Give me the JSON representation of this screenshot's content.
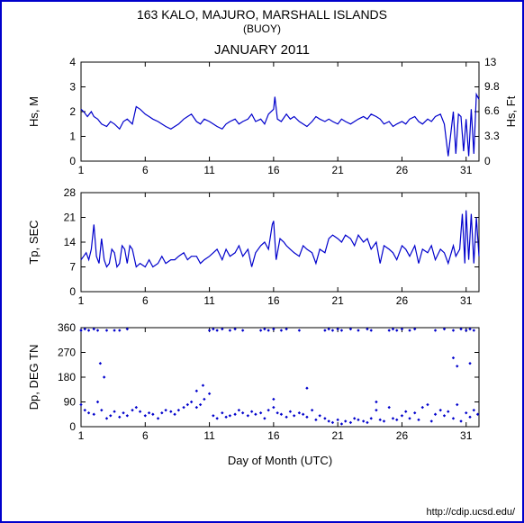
{
  "title": "163 KALO, MAJURO, MARSHALL ISLANDS",
  "subtitle": "(BUOY)",
  "month": "JANUARY 2011",
  "xaxis_label": "Day of Month (UTC)",
  "credit": "http://cdip.ucsd.edu/",
  "frame_border_color": "#0000cc",
  "line_color": "#0000cc",
  "marker_color": "#0000cc",
  "background_color": "#ffffff",
  "x": {
    "min": 1,
    "max": 32,
    "ticks": [
      1,
      6,
      11,
      16,
      21,
      26,
      31
    ]
  },
  "panels": [
    {
      "id": "hs",
      "ylabel_left": "Hs, M",
      "ylabel_right": "Hs, Ft",
      "ylim": [
        0,
        4
      ],
      "yticks_left": [
        0,
        1,
        2,
        3,
        4
      ],
      "yticks_right": [
        0,
        3.3,
        6.6,
        9.8,
        13
      ],
      "type": "line",
      "data": [
        [
          1,
          2.1
        ],
        [
          1.2,
          2.0
        ],
        [
          1.5,
          1.8
        ],
        [
          1.8,
          2.0
        ],
        [
          2,
          1.8
        ],
        [
          2.3,
          1.7
        ],
        [
          2.6,
          1.5
        ],
        [
          3,
          1.4
        ],
        [
          3.3,
          1.6
        ],
        [
          3.6,
          1.5
        ],
        [
          4,
          1.3
        ],
        [
          4.3,
          1.6
        ],
        [
          4.6,
          1.7
        ],
        [
          5,
          1.5
        ],
        [
          5.3,
          2.2
        ],
        [
          5.6,
          2.1
        ],
        [
          6,
          1.9
        ],
        [
          6.3,
          1.8
        ],
        [
          6.6,
          1.7
        ],
        [
          7,
          1.6
        ],
        [
          7.3,
          1.5
        ],
        [
          7.6,
          1.4
        ],
        [
          8,
          1.3
        ],
        [
          8.3,
          1.4
        ],
        [
          8.6,
          1.5
        ],
        [
          9,
          1.7
        ],
        [
          9.3,
          1.8
        ],
        [
          9.6,
          1.9
        ],
        [
          10,
          1.6
        ],
        [
          10.3,
          1.5
        ],
        [
          10.6,
          1.7
        ],
        [
          11,
          1.6
        ],
        [
          11.3,
          1.5
        ],
        [
          11.6,
          1.4
        ],
        [
          12,
          1.3
        ],
        [
          12.3,
          1.5
        ],
        [
          12.6,
          1.6
        ],
        [
          13,
          1.7
        ],
        [
          13.3,
          1.5
        ],
        [
          13.6,
          1.6
        ],
        [
          14,
          1.7
        ],
        [
          14.3,
          1.9
        ],
        [
          14.6,
          1.6
        ],
        [
          15,
          1.7
        ],
        [
          15.3,
          1.5
        ],
        [
          15.6,
          1.9
        ],
        [
          16,
          2.1
        ],
        [
          16.1,
          2.6
        ],
        [
          16.3,
          1.7
        ],
        [
          16.6,
          1.6
        ],
        [
          17,
          1.9
        ],
        [
          17.3,
          1.7
        ],
        [
          17.6,
          1.8
        ],
        [
          18,
          1.6
        ],
        [
          18.3,
          1.5
        ],
        [
          18.6,
          1.4
        ],
        [
          19,
          1.6
        ],
        [
          19.3,
          1.8
        ],
        [
          19.6,
          1.7
        ],
        [
          20,
          1.6
        ],
        [
          20.3,
          1.7
        ],
        [
          20.6,
          1.6
        ],
        [
          21,
          1.5
        ],
        [
          21.3,
          1.7
        ],
        [
          21.6,
          1.6
        ],
        [
          22,
          1.5
        ],
        [
          22.3,
          1.6
        ],
        [
          22.6,
          1.7
        ],
        [
          23,
          1.8
        ],
        [
          23.3,
          1.7
        ],
        [
          23.6,
          1.9
        ],
        [
          24,
          1.8
        ],
        [
          24.3,
          1.7
        ],
        [
          24.6,
          1.5
        ],
        [
          25,
          1.6
        ],
        [
          25.3,
          1.4
        ],
        [
          25.6,
          1.5
        ],
        [
          26,
          1.6
        ],
        [
          26.3,
          1.5
        ],
        [
          26.6,
          1.7
        ],
        [
          27,
          1.8
        ],
        [
          27.3,
          1.6
        ],
        [
          27.6,
          1.5
        ],
        [
          28,
          1.7
        ],
        [
          28.3,
          1.6
        ],
        [
          28.6,
          1.8
        ],
        [
          29,
          1.9
        ],
        [
          29.3,
          1.5
        ],
        [
          29.6,
          0.2
        ],
        [
          30,
          2.0
        ],
        [
          30.2,
          0.3
        ],
        [
          30.4,
          1.9
        ],
        [
          30.6,
          1.8
        ],
        [
          30.8,
          0.4
        ],
        [
          31,
          1.7
        ],
        [
          31.2,
          0.2
        ],
        [
          31.4,
          2.1
        ],
        [
          31.6,
          0.3
        ],
        [
          31.8,
          2.7
        ],
        [
          32,
          2.5
        ]
      ]
    },
    {
      "id": "tp",
      "ylabel_left": "Tp, SEC",
      "ylim": [
        0,
        28
      ],
      "yticks_left": [
        0,
        7,
        14,
        21,
        28
      ],
      "type": "line",
      "data": [
        [
          1,
          9
        ],
        [
          1.2,
          10
        ],
        [
          1.4,
          11
        ],
        [
          1.6,
          9
        ],
        [
          1.8,
          12
        ],
        [
          2,
          19
        ],
        [
          2.2,
          10
        ],
        [
          2.4,
          8
        ],
        [
          2.6,
          15
        ],
        [
          2.8,
          9
        ],
        [
          3,
          7
        ],
        [
          3.2,
          8
        ],
        [
          3.4,
          12
        ],
        [
          3.6,
          11
        ],
        [
          3.8,
          7
        ],
        [
          4,
          8
        ],
        [
          4.2,
          13
        ],
        [
          4.4,
          12
        ],
        [
          4.6,
          8
        ],
        [
          4.8,
          13
        ],
        [
          5,
          12
        ],
        [
          5.3,
          7
        ],
        [
          5.6,
          8
        ],
        [
          6,
          7
        ],
        [
          6.3,
          9
        ],
        [
          6.6,
          7
        ],
        [
          7,
          8
        ],
        [
          7.3,
          10
        ],
        [
          7.6,
          8
        ],
        [
          8,
          9
        ],
        [
          8.3,
          9
        ],
        [
          8.6,
          10
        ],
        [
          9,
          11
        ],
        [
          9.3,
          9
        ],
        [
          9.6,
          10
        ],
        [
          10,
          10
        ],
        [
          10.3,
          8
        ],
        [
          10.6,
          9
        ],
        [
          11,
          10
        ],
        [
          11.3,
          11
        ],
        [
          11.6,
          12
        ],
        [
          12,
          9
        ],
        [
          12.3,
          12
        ],
        [
          12.6,
          10
        ],
        [
          13,
          11
        ],
        [
          13.3,
          13
        ],
        [
          13.6,
          10
        ],
        [
          14,
          12
        ],
        [
          14.3,
          7
        ],
        [
          14.6,
          11
        ],
        [
          15,
          13
        ],
        [
          15.3,
          14
        ],
        [
          15.6,
          12
        ],
        [
          15.9,
          19
        ],
        [
          16,
          20
        ],
        [
          16.2,
          9
        ],
        [
          16.5,
          15
        ],
        [
          16.8,
          14
        ],
        [
          17,
          13
        ],
        [
          17.3,
          12
        ],
        [
          17.6,
          11
        ],
        [
          18,
          10
        ],
        [
          18.3,
          13
        ],
        [
          18.6,
          12
        ],
        [
          19,
          11
        ],
        [
          19.3,
          8
        ],
        [
          19.6,
          12
        ],
        [
          20,
          11
        ],
        [
          20.3,
          15
        ],
        [
          20.6,
          16
        ],
        [
          21,
          15
        ],
        [
          21.3,
          14
        ],
        [
          21.6,
          16
        ],
        [
          22,
          15
        ],
        [
          22.3,
          13
        ],
        [
          22.6,
          16
        ],
        [
          23,
          14
        ],
        [
          23.3,
          15
        ],
        [
          23.6,
          12
        ],
        [
          24,
          14
        ],
        [
          24.3,
          8
        ],
        [
          24.6,
          13
        ],
        [
          25,
          12
        ],
        [
          25.3,
          11
        ],
        [
          25.6,
          9
        ],
        [
          26,
          13
        ],
        [
          26.3,
          12
        ],
        [
          26.6,
          10
        ],
        [
          27,
          13
        ],
        [
          27.3,
          8
        ],
        [
          27.6,
          12
        ],
        [
          28,
          11
        ],
        [
          28.3,
          13
        ],
        [
          28.6,
          9
        ],
        [
          29,
          12
        ],
        [
          29.3,
          11
        ],
        [
          29.6,
          8
        ],
        [
          30,
          13
        ],
        [
          30.2,
          10
        ],
        [
          30.5,
          12
        ],
        [
          30.7,
          22
        ],
        [
          30.9,
          8
        ],
        [
          31,
          23
        ],
        [
          31.2,
          9
        ],
        [
          31.4,
          22
        ],
        [
          31.6,
          8
        ],
        [
          31.8,
          21
        ],
        [
          32,
          10
        ]
      ]
    },
    {
      "id": "dp",
      "ylabel_left": "Dp, DEG TN",
      "ylim": [
        0,
        360
      ],
      "yticks_left": [
        0,
        90,
        180,
        270,
        360
      ],
      "type": "scatter",
      "data": [
        [
          1,
          80
        ],
        [
          1,
          350
        ],
        [
          1.3,
          60
        ],
        [
          1.3,
          355
        ],
        [
          1.6,
          50
        ],
        [
          1.6,
          350
        ],
        [
          2,
          45
        ],
        [
          2,
          355
        ],
        [
          2.3,
          90
        ],
        [
          2.3,
          350
        ],
        [
          2.5,
          230
        ],
        [
          2.6,
          60
        ],
        [
          2.8,
          180
        ],
        [
          3,
          30
        ],
        [
          3,
          350
        ],
        [
          3.3,
          40
        ],
        [
          3.6,
          55
        ],
        [
          3.6,
          350
        ],
        [
          4,
          35
        ],
        [
          4,
          350
        ],
        [
          4.3,
          50
        ],
        [
          4.6,
          355
        ],
        [
          4.6,
          40
        ],
        [
          5,
          60
        ],
        [
          5.3,
          70
        ],
        [
          5.6,
          55
        ],
        [
          6,
          40
        ],
        [
          6.3,
          50
        ],
        [
          6.6,
          45
        ],
        [
          7,
          30
        ],
        [
          7.3,
          50
        ],
        [
          7.6,
          60
        ],
        [
          8,
          55
        ],
        [
          8.3,
          45
        ],
        [
          8.6,
          60
        ],
        [
          9,
          70
        ],
        [
          9.3,
          80
        ],
        [
          9.6,
          90
        ],
        [
          10,
          70
        ],
        [
          10,
          130
        ],
        [
          10.3,
          80
        ],
        [
          10.5,
          150
        ],
        [
          10.6,
          100
        ],
        [
          11,
          120
        ],
        [
          11,
          350
        ],
        [
          11.3,
          40
        ],
        [
          11.3,
          355
        ],
        [
          11.6,
          30
        ],
        [
          11.6,
          350
        ],
        [
          12,
          50
        ],
        [
          12,
          355
        ],
        [
          12.3,
          35
        ],
        [
          12.6,
          40
        ],
        [
          12.6,
          350
        ],
        [
          13,
          45
        ],
        [
          13,
          355
        ],
        [
          13.3,
          60
        ],
        [
          13.6,
          50
        ],
        [
          13.6,
          350
        ],
        [
          14,
          40
        ],
        [
          14.3,
          55
        ],
        [
          14.6,
          45
        ],
        [
          15,
          50
        ],
        [
          15,
          350
        ],
        [
          15.3,
          30
        ],
        [
          15.3,
          355
        ],
        [
          15.6,
          60
        ],
        [
          15.6,
          350
        ],
        [
          16,
          70
        ],
        [
          16,
          100
        ],
        [
          16,
          355
        ],
        [
          16.3,
          50
        ],
        [
          16.6,
          45
        ],
        [
          16.6,
          350
        ],
        [
          17,
          35
        ],
        [
          17,
          355
        ],
        [
          17.3,
          55
        ],
        [
          17.6,
          40
        ],
        [
          18,
          50
        ],
        [
          18,
          350
        ],
        [
          18.3,
          45
        ],
        [
          18.6,
          35
        ],
        [
          18.6,
          140
        ],
        [
          19,
          60
        ],
        [
          19.3,
          25
        ],
        [
          19.6,
          40
        ],
        [
          20,
          30
        ],
        [
          20,
          350
        ],
        [
          20.3,
          20
        ],
        [
          20.3,
          355
        ],
        [
          20.6,
          15
        ],
        [
          20.6,
          350
        ],
        [
          21,
          25
        ],
        [
          21,
          355
        ],
        [
          21.3,
          10
        ],
        [
          21.3,
          350
        ],
        [
          21.6,
          20
        ],
        [
          22,
          15
        ],
        [
          22,
          355
        ],
        [
          22.3,
          30
        ],
        [
          22.6,
          25
        ],
        [
          22.6,
          350
        ],
        [
          23,
          20
        ],
        [
          23.3,
          15
        ],
        [
          23.3,
          355
        ],
        [
          23.6,
          30
        ],
        [
          23.6,
          350
        ],
        [
          24,
          60
        ],
        [
          24,
          90
        ],
        [
          24.3,
          25
        ],
        [
          24.6,
          20
        ],
        [
          25,
          70
        ],
        [
          25,
          350
        ],
        [
          25.3,
          30
        ],
        [
          25.3,
          355
        ],
        [
          25.6,
          25
        ],
        [
          25.6,
          350
        ],
        [
          26,
          40
        ],
        [
          26,
          355
        ],
        [
          26.3,
          55
        ],
        [
          26.6,
          30
        ],
        [
          26.6,
          350
        ],
        [
          27,
          50
        ],
        [
          27,
          355
        ],
        [
          27.3,
          25
        ],
        [
          27.6,
          70
        ],
        [
          28,
          80
        ],
        [
          28.3,
          20
        ],
        [
          28.6,
          45
        ],
        [
          28.6,
          350
        ],
        [
          29,
          60
        ],
        [
          29.3,
          40
        ],
        [
          29.3,
          355
        ],
        [
          29.6,
          55
        ],
        [
          30,
          30
        ],
        [
          30,
          250
        ],
        [
          30,
          350
        ],
        [
          30.3,
          80
        ],
        [
          30.3,
          220
        ],
        [
          30.6,
          20
        ],
        [
          30.6,
          355
        ],
        [
          31,
          50
        ],
        [
          31,
          350
        ],
        [
          31.3,
          35
        ],
        [
          31.3,
          230
        ],
        [
          31.3,
          355
        ],
        [
          31.6,
          60
        ],
        [
          31.6,
          350
        ],
        [
          31.9,
          45
        ]
      ]
    }
  ]
}
